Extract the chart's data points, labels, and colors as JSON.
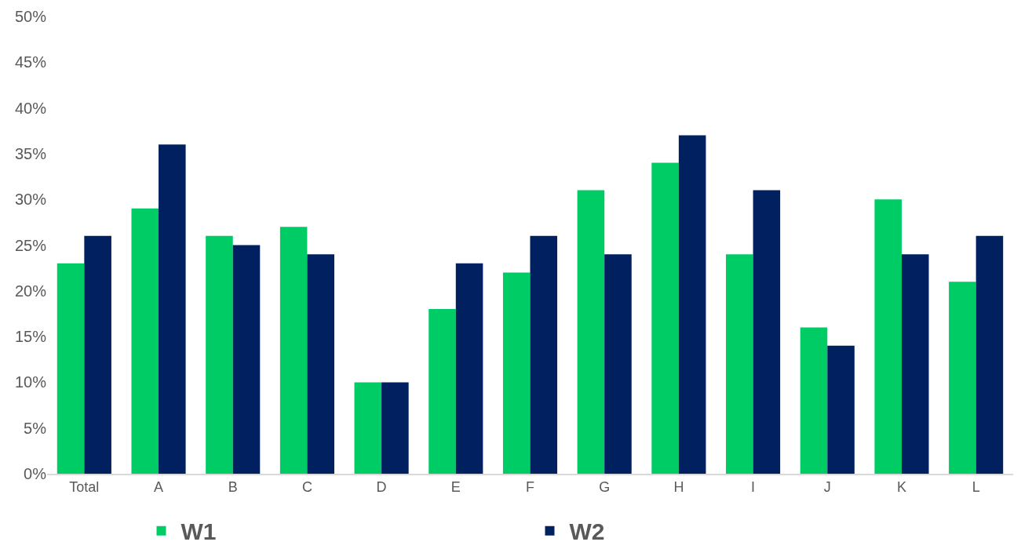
{
  "chart_data": {
    "type": "bar",
    "categories": [
      "Total",
      "A",
      "B",
      "C",
      "D",
      "E",
      "F",
      "G",
      "H",
      "I",
      "J",
      "K",
      "L"
    ],
    "series": [
      {
        "name": "W1",
        "color": "#00cc66",
        "values": [
          23,
          29,
          26,
          27,
          10,
          18,
          22,
          31,
          34,
          24,
          16,
          30,
          21
        ]
      },
      {
        "name": "W2",
        "color": "#002060",
        "values": [
          26,
          36,
          25,
          24,
          10,
          23,
          26,
          24,
          37,
          31,
          14,
          24,
          26
        ]
      }
    ],
    "ylim": [
      0,
      50
    ],
    "yticks": [
      {
        "value": 0,
        "label": "0%"
      },
      {
        "value": 5,
        "label": "5%"
      },
      {
        "value": 10,
        "label": "10%"
      },
      {
        "value": 15,
        "label": "15%"
      },
      {
        "value": 20,
        "label": "20%"
      },
      {
        "value": 25,
        "label": "25%"
      },
      {
        "value": 30,
        "label": "30%"
      },
      {
        "value": 35,
        "label": "35%"
      },
      {
        "value": 40,
        "label": "40%"
      },
      {
        "value": 45,
        "label": "45%"
      },
      {
        "value": 50,
        "label": "50%"
      }
    ],
    "grid": false,
    "legend": "bottom"
  }
}
